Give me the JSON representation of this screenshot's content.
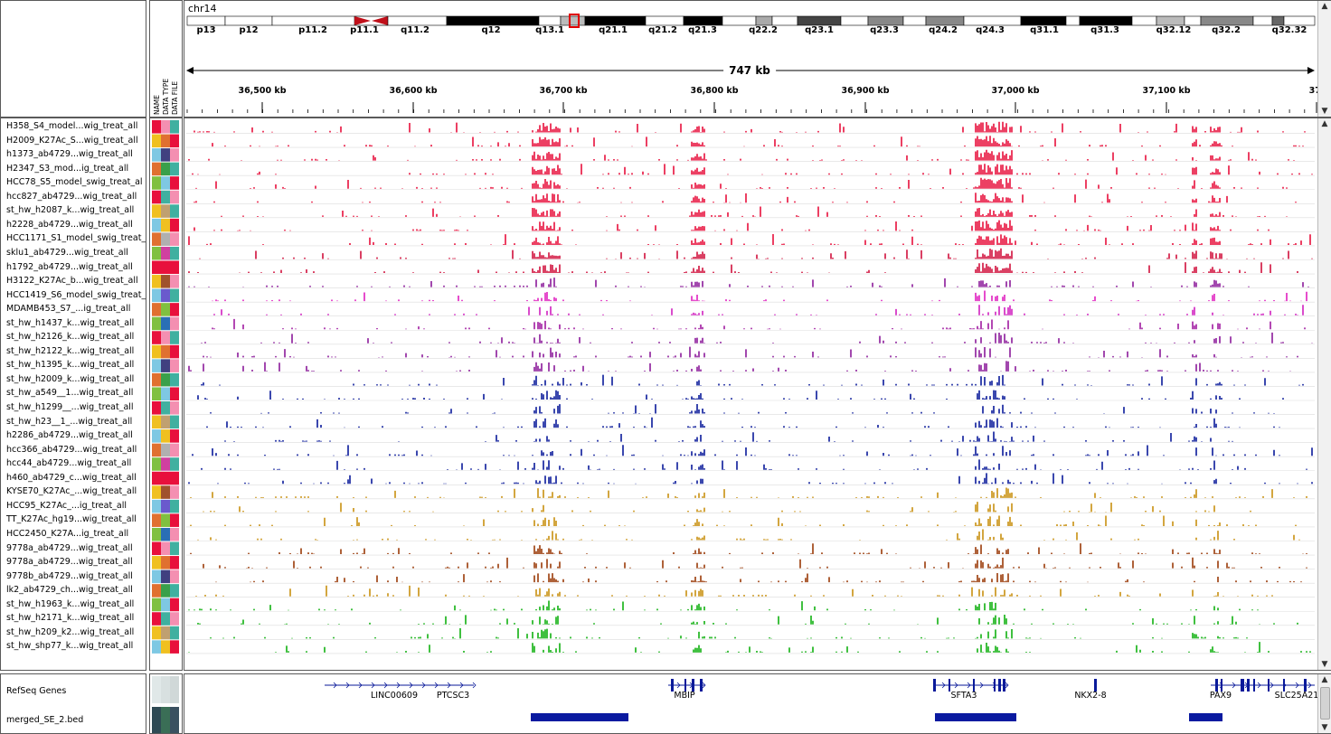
{
  "header": {
    "chromosome": "chr14",
    "attribute_headers": [
      "NAME",
      "DATA TYPE",
      "DATA FILE"
    ],
    "span_label": "747 kb",
    "ideogram_bands": [
      "p13",
      "p12",
      "p11.2",
      "p11.1",
      "q11.2",
      "q12",
      "q13.1",
      "q21.1",
      "q21.2",
      "q21.3",
      "q22.2",
      "q23.1",
      "q23.3",
      "q24.2",
      "q24.3",
      "q31.1",
      "q31.3",
      "q32.12",
      "q32.2",
      "q32.32"
    ],
    "ruler_ticks": [
      "36,500 kb",
      "36,600 kb",
      "36,700 kb",
      "36,800 kb",
      "36,900 kb",
      "37,000 kb",
      "37,100 kb",
      "37,"
    ]
  },
  "tracks": [
    {
      "name": "H358_S4_model...wig_treat_all",
      "color": "#e8103c"
    },
    {
      "name": "H2009_K27Ac_S...wig_treat_all",
      "color": "#e8103c"
    },
    {
      "name": "h1373_ab4729...wig_treat_all",
      "color": "#e8103c"
    },
    {
      "name": "H2347_S3_mod...ig_treat_all",
      "color": "#e8103c"
    },
    {
      "name": "HCC78_S5_model_swig_treat_al",
      "color": "#e8103c"
    },
    {
      "name": "hcc827_ab4729...wig_treat_all",
      "color": "#e8103c"
    },
    {
      "name": "st_hw_h2087_k...wig_treat_all",
      "color": "#e8103c"
    },
    {
      "name": "h2228_ab4729...wig_treat_all",
      "color": "#e8103c"
    },
    {
      "name": "HCC1171_S1_model_swig_treat_",
      "color": "#e8103c"
    },
    {
      "name": "sklu1_ab4729...wig_treat_all",
      "color": "#d0103c"
    },
    {
      "name": "h1792_ab4729...wig_treat_all",
      "color": "#d0103c"
    },
    {
      "name": "H3122_K27Ac_b...wig_treat_all",
      "color": "#8b1a9a"
    },
    {
      "name": "HCC1419_S6_model_swig_treat_",
      "color": "#e020c0"
    },
    {
      "name": "MDAMB453_S7_...ig_treat_all",
      "color": "#d020c0"
    },
    {
      "name": "st_hw_h1437_k...wig_treat_all",
      "color": "#a01aa0"
    },
    {
      "name": "st_hw_h2126_k...wig_treat_all",
      "color": "#8b1a9a"
    },
    {
      "name": "st_hw_h2122_k...wig_treat_all",
      "color": "#8b1a9a"
    },
    {
      "name": "st_hw_h1395_k...wig_treat_all",
      "color": "#8b1a9a"
    },
    {
      "name": "st_hw_h2009_k...wig_treat_all",
      "color": "#0a1a9a"
    },
    {
      "name": "st_hw_a549__1...wig_treat_all",
      "color": "#0a1a9a"
    },
    {
      "name": "st_hw_h1299__...wig_treat_all",
      "color": "#0a1a9a"
    },
    {
      "name": "st_hw_h23__1_...wig_treat_all",
      "color": "#0a1a9a"
    },
    {
      "name": "h2286_ab4729...wig_treat_all",
      "color": "#0a1a9a"
    },
    {
      "name": "hcc366_ab4729...wig_treat_all",
      "color": "#0a1a9a"
    },
    {
      "name": "hcc44_ab4729...wig_treat_all",
      "color": "#0a1a9a"
    },
    {
      "name": "h460_ab4729_c...wig_treat_all",
      "color": "#0a1a9a"
    },
    {
      "name": "KYSE70_K27Ac_...wig_treat_all",
      "color": "#c89010"
    },
    {
      "name": "HCC95_K27Ac_...ig_treat_all",
      "color": "#c89010"
    },
    {
      "name": "TT_K27Ac_hg19...wig_treat_all",
      "color": "#c89010"
    },
    {
      "name": "HCC2450_K27A...ig_treat_all",
      "color": "#c89010"
    },
    {
      "name": "9778a_ab4729...wig_treat_all",
      "color": "#9a3a08"
    },
    {
      "name": "9778a_ab4729...wig_treat_all",
      "color": "#9a3a08"
    },
    {
      "name": "9778b_ab4729...wig_treat_all",
      "color": "#9a3a08"
    },
    {
      "name": "lk2_ab4729_ch...wig_treat_all",
      "color": "#c89010"
    },
    {
      "name": "st_hw_h1963_k...wig_treat_all",
      "color": "#10b010"
    },
    {
      "name": "st_hw_h2171_k...wig_treat_all",
      "color": "#10b010"
    },
    {
      "name": "st_hw_h209_k2...wig_treat_all",
      "color": "#10b010"
    },
    {
      "name": "st_hw_shp77_k...wig_treat_all",
      "color": "#10b010"
    }
  ],
  "feature_tracks": [
    {
      "name": "RefSeq Genes"
    },
    {
      "name": "merged_SE_2.bed"
    }
  ],
  "genes": [
    "LINC00609",
    "PTCSC3",
    "MBIP",
    "SFTA3",
    "NKX2-8",
    "PAX9",
    "SLC25A21"
  ],
  "colors": {
    "gene": "#0a1a9a",
    "bed": "#0a1aa0",
    "centromere": "#c0101a",
    "highlight": "#e00000"
  }
}
